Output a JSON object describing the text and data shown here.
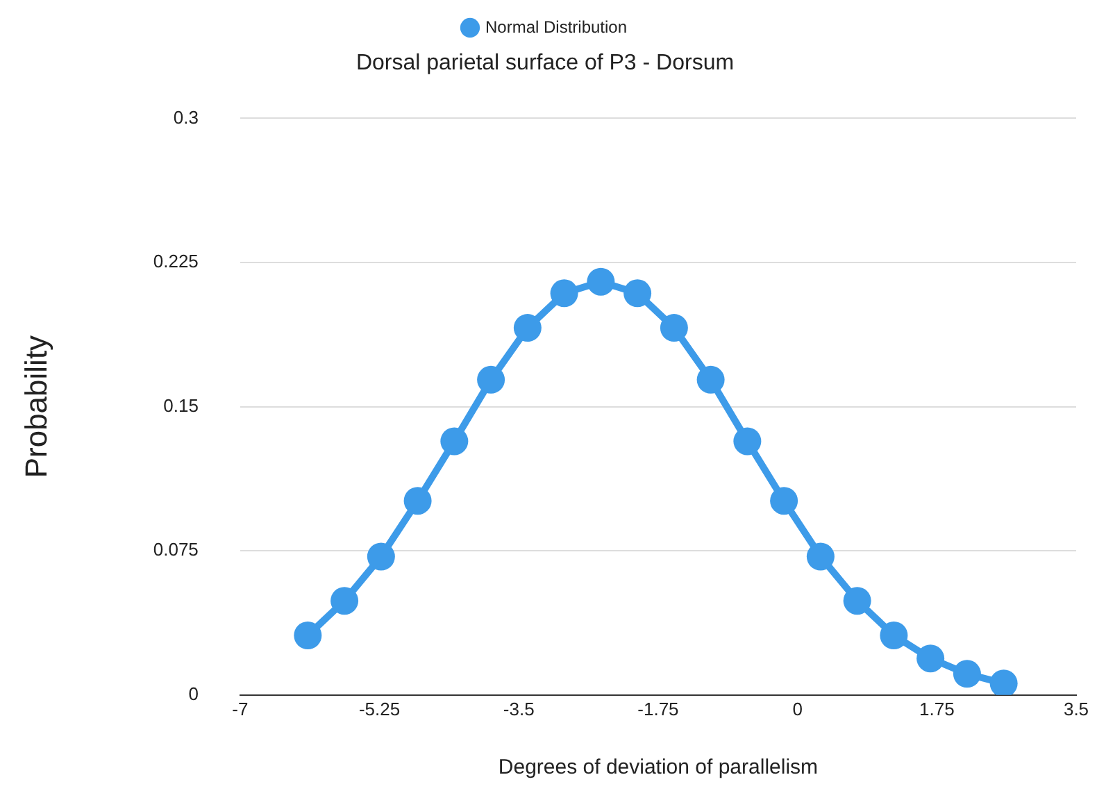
{
  "chart_data": {
    "type": "line",
    "title": "Dorsal parietal surface of P3 - Dorsum",
    "xlabel": "Degrees of deviation of parallelism",
    "ylabel": "Probability",
    "x": [
      -6.15,
      -5.69,
      -5.23,
      -4.77,
      -4.31,
      -3.85,
      -3.39,
      -2.93,
      -2.47,
      -2.01,
      -1.55,
      -1.09,
      -0.63,
      -0.17,
      0.29,
      0.75,
      1.21,
      1.67,
      2.13,
      2.59
    ],
    "series": [
      {
        "name": "Normal Distribution",
        "color": "#3d9be9",
        "values": [
          0.031,
          0.049,
          0.072,
          0.101,
          0.132,
          0.164,
          0.191,
          0.209,
          0.215,
          0.209,
          0.191,
          0.164,
          0.132,
          0.101,
          0.072,
          0.049,
          0.031,
          0.019,
          0.011,
          0.006
        ]
      }
    ],
    "xlim": [
      -7,
      3.5
    ],
    "xticks": [
      -7,
      -5.25,
      -3.5,
      -1.75,
      0,
      1.75,
      3.5
    ],
    "ylim": [
      0,
      0.3
    ],
    "yticks": [
      0,
      0.075,
      0.15,
      0.225,
      0.3
    ],
    "grid": "y",
    "legend": "top",
    "marker": "circle",
    "line_style": "solid"
  }
}
